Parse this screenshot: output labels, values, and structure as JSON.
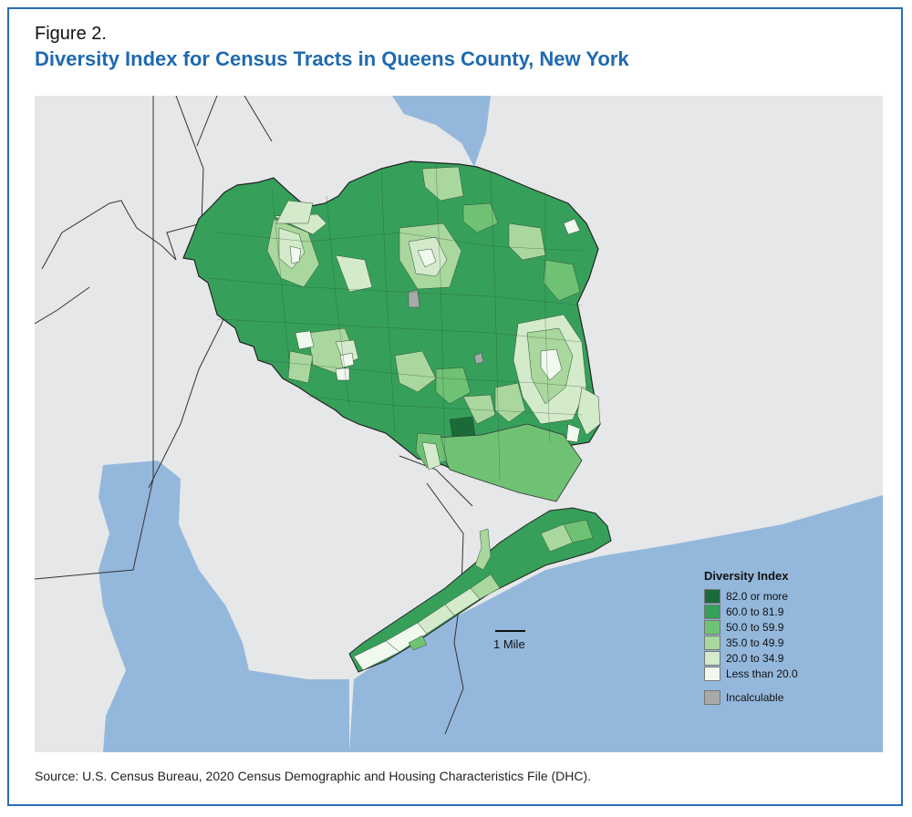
{
  "figure": {
    "label": "Figure 2.",
    "title": "Diversity Index for Census Tracts in Queens County, New York",
    "source": "Source: U.S. Census Bureau, 2020 Census Demographic and Housing Characteristics File (DHC)."
  },
  "map": {
    "scale_bar_label": "1 Mile",
    "colors": {
      "land": "#e6e7e8",
      "water": "#94b8dc",
      "boundary": "#333333"
    }
  },
  "legend": {
    "title": "Diversity Index",
    "classes": [
      {
        "label": "82.0 or more",
        "color": "#1a6a3a"
      },
      {
        "label": "60.0 to 81.9",
        "color": "#36a05a"
      },
      {
        "label": "50.0 to 59.9",
        "color": "#6fc273"
      },
      {
        "label": "35.0 to 49.9",
        "color": "#a9d79d"
      },
      {
        "label": "20.0 to 34.9",
        "color": "#d3eacb"
      },
      {
        "label": "Less than 20.0",
        "color": "#f1f8ee"
      }
    ],
    "incalculable": {
      "label": "Incalculable",
      "color": "#a8a9ab"
    }
  }
}
